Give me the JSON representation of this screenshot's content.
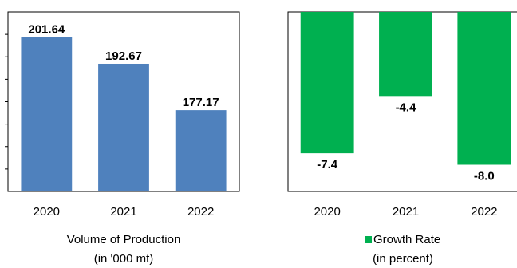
{
  "chart_data": [
    {
      "type": "bar",
      "categories": [
        "2020",
        "2021",
        "2022"
      ],
      "values": [
        201.64,
        192.67,
        177.17
      ],
      "data_labels": [
        "201.64",
        "192.67",
        "177.17"
      ],
      "caption_line1": "Volume of Production",
      "caption_line2": "(in '000 mt)",
      "ylim": [
        150,
        210
      ],
      "bar_color": "#4f81bd",
      "frame": true,
      "legend": false
    },
    {
      "type": "bar",
      "categories": [
        "2020",
        "2021",
        "2022"
      ],
      "values": [
        -7.4,
        -4.4,
        -8.0
      ],
      "data_labels": [
        "-7.4",
        "-4.4",
        "-8.0"
      ],
      "legend_label": "Growth Rate",
      "caption_line2": "(in percent)",
      "ylim": [
        -9.4,
        0
      ],
      "bar_color": "#00b050",
      "frame": true,
      "legend": true,
      "legend_position": "bottom"
    }
  ]
}
